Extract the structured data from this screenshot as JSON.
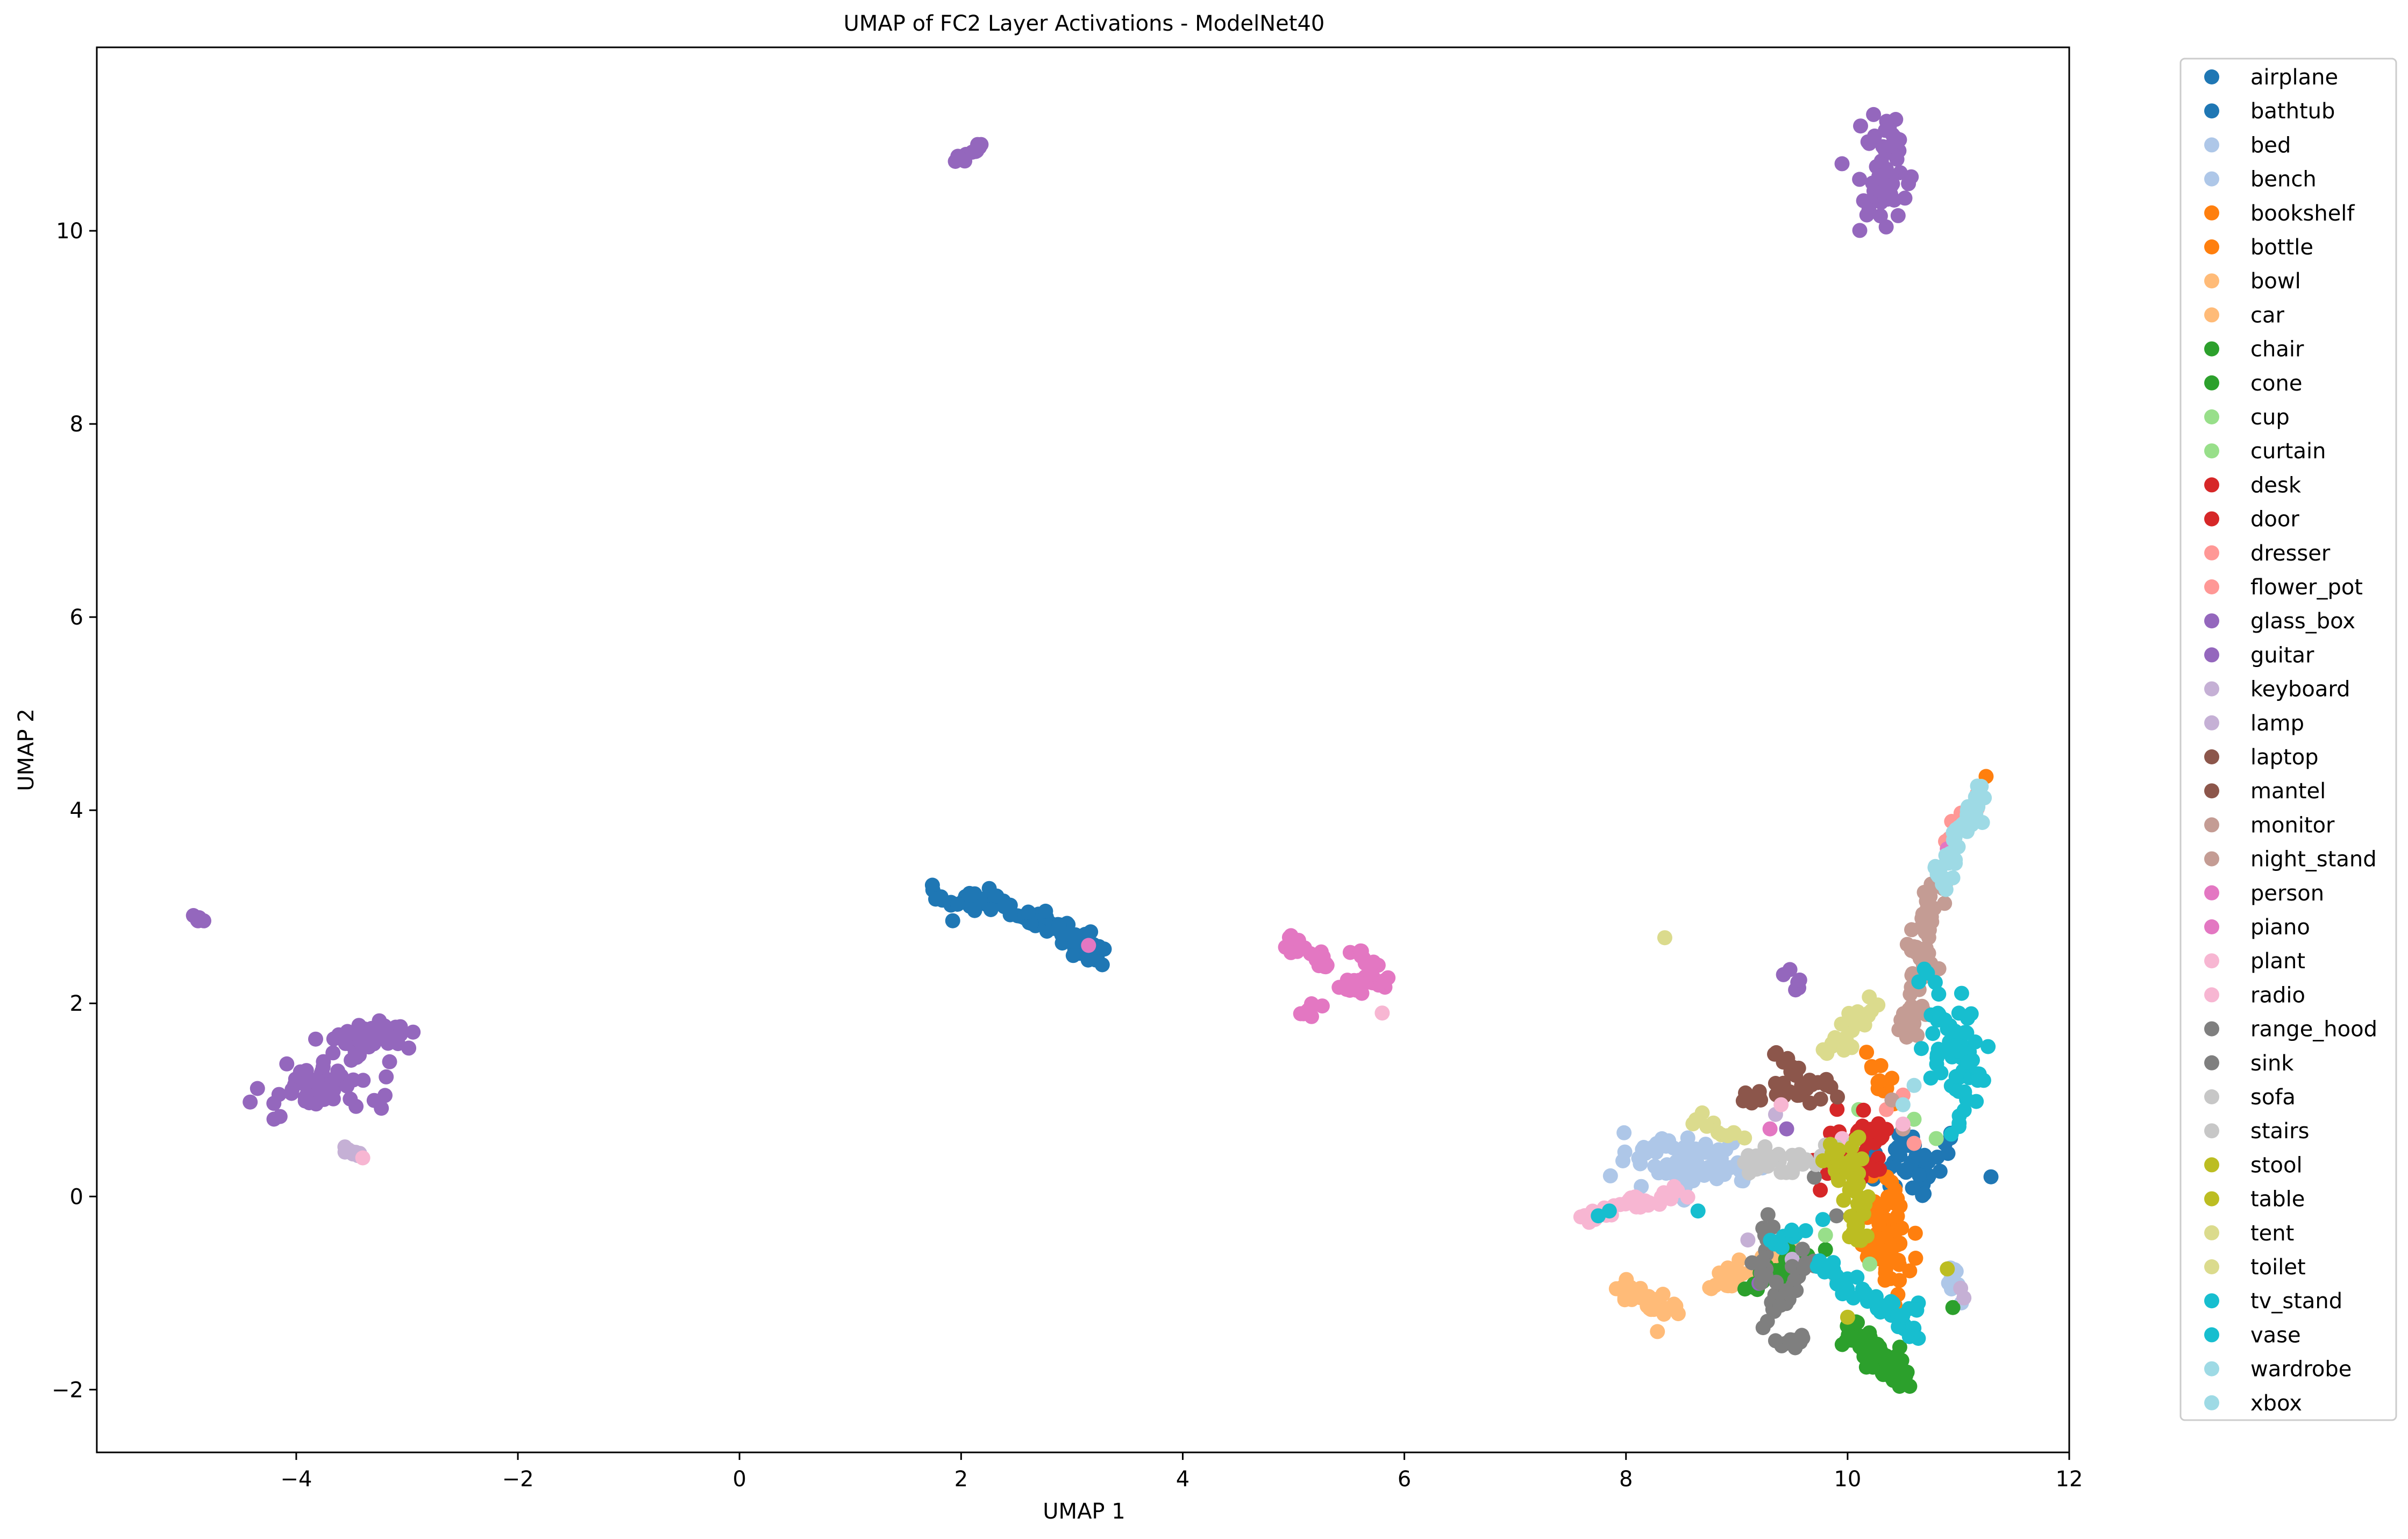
{
  "chart_data": {
    "type": "scatter",
    "title": "UMAP of FC2 Layer Activations - ModelNet40",
    "xlabel": "UMAP 1",
    "ylabel": "UMAP 2",
    "xlim": [
      -5.8,
      12.0
    ],
    "ylim": [
      -2.65,
      11.9
    ],
    "xticks": [
      -4,
      -2,
      0,
      2,
      4,
      6,
      8,
      10,
      12
    ],
    "xtick_labels": [
      "−4",
      "−2",
      "0",
      "2",
      "4",
      "6",
      "8",
      "10",
      "12"
    ],
    "yticks": [
      -2,
      0,
      2,
      4,
      6,
      8,
      10
    ],
    "ytick_labels": [
      "−2",
      "0",
      "2",
      "4",
      "6",
      "8",
      "10"
    ],
    "grid": false,
    "legend_position": "outside-right",
    "series": [
      {
        "name": "airplane",
        "color": "#1f77b4",
        "clusters": [
          {
            "cx": 10.6,
            "cy": 0.35,
            "sx": 0.25,
            "sy": 0.2,
            "n": 40
          }
        ]
      },
      {
        "name": "bathtub",
        "color": "#1f77b4",
        "clusters": [
          {
            "line": [
              [
                1.7,
                3.15
              ],
              [
                2.4,
                3.0
              ],
              [
                3.05,
                2.7
              ],
              [
                3.2,
                2.5
              ]
            ],
            "spread": 0.06,
            "n": 95
          }
        ]
      },
      {
        "name": "bed",
        "color": "#aec7e8",
        "clusters": [
          {
            "cx": 8.6,
            "cy": 0.35,
            "sx": 0.3,
            "sy": 0.15,
            "n": 60
          },
          {
            "line": [
              [
                8.1,
                0.45
              ],
              [
                9.1,
                0.2
              ]
            ],
            "spread": 0.08,
            "n": 30
          }
        ]
      },
      {
        "name": "bench",
        "color": "#aec7e8",
        "clusters": [
          {
            "line": [
              [
                10.9,
                -0.7
              ],
              [
                11.1,
                -1.2
              ]
            ],
            "spread": 0.03,
            "n": 10
          }
        ]
      },
      {
        "name": "bookshelf",
        "color": "#ff7f0e",
        "clusters": [
          {
            "cx": 10.35,
            "cy": -0.4,
            "sx": 0.1,
            "sy": 0.25,
            "n": 70
          },
          {
            "line": [
              [
                10.2,
                1.4
              ],
              [
                10.35,
                1.0
              ]
            ],
            "spread": 0.05,
            "n": 12
          }
        ]
      },
      {
        "name": "bottle",
        "color": "#ff7f0e",
        "clusters": [
          {
            "points": [
              [
                11.25,
                4.35
              ]
            ]
          }
        ]
      },
      {
        "name": "bowl",
        "color": "#ffbb78",
        "clusters": [
          {
            "line": [
              [
                7.95,
                -0.95
              ],
              [
                8.4,
                -1.2
              ]
            ],
            "spread": 0.06,
            "n": 40
          }
        ]
      },
      {
        "name": "car",
        "color": "#ffbb78",
        "clusters": [
          {
            "line": [
              [
                8.7,
                -0.95
              ],
              [
                9.6,
                -0.6
              ]
            ],
            "spread": 0.06,
            "n": 50
          }
        ]
      },
      {
        "name": "chair",
        "color": "#2ca02c",
        "clusters": [
          {
            "line": [
              [
                10.0,
                -1.35
              ],
              [
                10.5,
                -1.9
              ]
            ],
            "spread": 0.07,
            "n": 90
          }
        ]
      },
      {
        "name": "cone",
        "color": "#2ca02c",
        "clusters": [
          {
            "line": [
              [
                9.0,
                -1.0
              ],
              [
                9.6,
                -0.6
              ]
            ],
            "spread": 0.07,
            "n": 20
          },
          {
            "points": [
              [
                10.95,
                -1.15
              ],
              [
                9.8,
                -0.55
              ],
              [
                10.1,
                -0.2
              ]
            ]
          }
        ]
      },
      {
        "name": "cup",
        "color": "#98df8a",
        "clusters": [
          {
            "points": [
              [
                10.1,
                0.9
              ],
              [
                9.8,
                -0.4
              ],
              [
                10.8,
                0.6
              ]
            ]
          }
        ]
      },
      {
        "name": "curtain",
        "color": "#98df8a",
        "clusters": [
          {
            "points": [
              [
                10.6,
                0.8
              ],
              [
                10.2,
                -0.7
              ]
            ]
          }
        ]
      },
      {
        "name": "desk",
        "color": "#d62728",
        "clusters": [
          {
            "cx": 10.0,
            "cy": 0.45,
            "sx": 0.15,
            "sy": 0.15,
            "n": 35
          }
        ]
      },
      {
        "name": "door",
        "color": "#d62728",
        "clusters": [
          {
            "cx": 10.2,
            "cy": 0.65,
            "sx": 0.1,
            "sy": 0.15,
            "n": 15
          }
        ]
      },
      {
        "name": "dresser",
        "color": "#ff9896",
        "clusters": [
          {
            "line": [
              [
                10.85,
                3.6
              ],
              [
                11.2,
                4.2
              ]
            ],
            "spread": 0.04,
            "n": 8
          }
        ]
      },
      {
        "name": "flower_pot",
        "color": "#ff9896",
        "clusters": [
          {
            "points": [
              [
                10.6,
                0.55
              ],
              [
                10.35,
                0.9
              ],
              [
                10.5,
                1.05
              ]
            ]
          }
        ]
      },
      {
        "name": "glass_box",
        "color": "#9467bd",
        "clusters": [
          {
            "line": [
              [
                1.98,
                10.75
              ],
              [
                2.18,
                10.88
              ]
            ],
            "spread": 0.02,
            "n": 15
          },
          {
            "line": [
              [
                10.3,
                11.2
              ],
              [
                10.3,
                10.1
              ]
            ],
            "spread": 0.12,
            "n": 55
          },
          {
            "line": [
              [
                -4.95,
                2.9
              ],
              [
                -4.85,
                2.83
              ]
            ],
            "spread": 0.02,
            "n": 5
          }
        ]
      },
      {
        "name": "guitar",
        "color": "#9467bd",
        "clusters": [
          {
            "cx": -3.8,
            "cy": 1.15,
            "sx": 0.25,
            "sy": 0.15,
            "n": 60
          },
          {
            "cx": -3.3,
            "cy": 1.65,
            "sx": 0.2,
            "sy": 0.1,
            "n": 45
          },
          {
            "line": [
              [
                9.45,
                2.3
              ],
              [
                9.55,
                2.15
              ]
            ],
            "spread": 0.03,
            "n": 6
          },
          {
            "points": [
              [
                9.2,
                -0.9
              ],
              [
                9.45,
                0.7
              ]
            ]
          }
        ]
      },
      {
        "name": "keyboard",
        "color": "#c5b0d5",
        "clusters": [
          {
            "line": [
              [
                -3.6,
                0.55
              ],
              [
                -3.4,
                0.42
              ]
            ],
            "spread": 0.02,
            "n": 10
          },
          {
            "points": [
              [
                9.1,
                -0.45
              ],
              [
                9.35,
                0.85
              ]
            ]
          }
        ]
      },
      {
        "name": "lamp",
        "color": "#c5b0d5",
        "clusters": [
          {
            "points": [
              [
                11.02,
                -0.95
              ],
              [
                11.05,
                -1.05
              ],
              [
                9.5,
                -0.65
              ]
            ]
          }
        ]
      },
      {
        "name": "laptop",
        "color": "#8c564b",
        "clusters": [
          {
            "line": [
              [
                9.0,
                1.0
              ],
              [
                9.7,
                1.1
              ]
            ],
            "spread": 0.05,
            "n": 18
          },
          {
            "line": [
              [
                9.4,
                1.55
              ],
              [
                9.65,
                1.1
              ]
            ],
            "spread": 0.05,
            "n": 10
          }
        ]
      },
      {
        "name": "mantel",
        "color": "#8c564b",
        "clusters": [
          {
            "cx": 9.65,
            "cy": 1.15,
            "sx": 0.15,
            "sy": 0.08,
            "n": 15
          }
        ]
      },
      {
        "name": "monitor",
        "color": "#c49c94",
        "clusters": [
          {
            "line": [
              [
                10.85,
                3.3
              ],
              [
                10.55,
                1.6
              ]
            ],
            "spread": 0.06,
            "n": 45
          }
        ]
      },
      {
        "name": "night_stand",
        "color": "#c49c94",
        "clusters": [
          {
            "line": [
              [
                10.65,
                2.5
              ],
              [
                10.75,
                3.2
              ]
            ],
            "spread": 0.05,
            "n": 20
          },
          {
            "points": [
              [
                10.4,
                1.0
              ],
              [
                10.5,
                0.7
              ]
            ]
          }
        ]
      },
      {
        "name": "person",
        "color": "#e377c2",
        "clusters": [
          {
            "line": [
              [
                4.95,
                2.65
              ],
              [
                5.3,
                2.4
              ]
            ],
            "spread": 0.05,
            "n": 25
          },
          {
            "line": [
              [
                5.4,
                2.2
              ],
              [
                5.85,
                2.25
              ]
            ],
            "spread": 0.05,
            "n": 25
          }
        ]
      },
      {
        "name": "piano",
        "color": "#e377c2",
        "clusters": [
          {
            "line": [
              [
                5.05,
                1.85
              ],
              [
                5.3,
                2.05
              ]
            ],
            "spread": 0.04,
            "n": 10
          },
          {
            "line": [
              [
                5.55,
                2.55
              ],
              [
                5.8,
                2.3
              ]
            ],
            "spread": 0.04,
            "n": 12
          },
          {
            "points": [
              [
                3.15,
                2.6
              ],
              [
                10.9,
                3.6
              ],
              [
                9.3,
                0.7
              ]
            ]
          }
        ]
      },
      {
        "name": "plant",
        "color": "#f7b6d2",
        "clusters": [
          {
            "line": [
              [
                7.6,
                -0.25
              ],
              [
                8.5,
                0.05
              ]
            ],
            "spread": 0.05,
            "n": 35
          },
          {
            "points": [
              [
                -3.4,
                0.4
              ],
              [
                5.8,
                1.9
              ]
            ]
          }
        ]
      },
      {
        "name": "radio",
        "color": "#f7b6d2",
        "clusters": [
          {
            "points": [
              [
                9.4,
                0.95
              ],
              [
                9.95,
                0.6
              ],
              [
                10.5,
                0.75
              ]
            ]
          }
        ]
      },
      {
        "name": "range_hood",
        "color": "#7f7f7f",
        "clusters": [
          {
            "line": [
              [
                9.2,
                -1.4
              ],
              [
                9.65,
                -0.65
              ]
            ],
            "spread": 0.06,
            "n": 30
          },
          {
            "line": [
              [
                9.4,
                -1.55
              ],
              [
                9.6,
                -1.45
              ]
            ],
            "spread": 0.04,
            "n": 10
          }
        ]
      },
      {
        "name": "sink",
        "color": "#7f7f7f",
        "clusters": [
          {
            "line": [
              [
                9.2,
                -0.9
              ],
              [
                9.3,
                -0.2
              ]
            ],
            "spread": 0.04,
            "n": 15
          },
          {
            "points": [
              [
                9.9,
                -0.2
              ],
              [
                9.7,
                0.2
              ]
            ]
          }
        ]
      },
      {
        "name": "sofa",
        "color": "#c7c7c7",
        "clusters": [
          {
            "line": [
              [
                9.1,
                0.35
              ],
              [
                9.9,
                0.4
              ]
            ],
            "spread": 0.07,
            "n": 35
          }
        ]
      },
      {
        "name": "stairs",
        "color": "#c7c7c7",
        "clusters": [
          {
            "points": [
              [
                9.9,
                -0.85
              ],
              [
                10.05,
                0.55
              ],
              [
                9.4,
                0.25
              ]
            ]
          }
        ]
      },
      {
        "name": "stool",
        "color": "#bcbd22",
        "clusters": [
          {
            "line": [
              [
                10.05,
                0.6
              ],
              [
                10.1,
                -0.5
              ]
            ],
            "spread": 0.05,
            "n": 30
          }
        ]
      },
      {
        "name": "table",
        "color": "#bcbd22",
        "clusters": [
          {
            "line": [
              [
                9.8,
                0.5
              ],
              [
                10.1,
                0.1
              ]
            ],
            "spread": 0.06,
            "n": 15
          },
          {
            "points": [
              [
                10.9,
                -0.75
              ],
              [
                10.0,
                -1.25
              ]
            ]
          }
        ]
      },
      {
        "name": "tent",
        "color": "#dbdb8d",
        "clusters": [
          {
            "points": [
              [
                8.35,
                2.68
              ]
            ]
          }
        ]
      },
      {
        "name": "toilet",
        "color": "#dbdb8d",
        "clusters": [
          {
            "line": [
              [
                9.75,
                1.45
              ],
              [
                10.2,
                1.95
              ]
            ],
            "spread": 0.06,
            "n": 35
          },
          {
            "line": [
              [
                8.6,
                0.85
              ],
              [
                9.0,
                0.6
              ]
            ],
            "spread": 0.04,
            "n": 12
          }
        ]
      },
      {
        "name": "tv_stand",
        "color": "#17becf",
        "clusters": [
          {
            "cx": 11.0,
            "cy": 1.35,
            "sx": 0.15,
            "sy": 0.3,
            "n": 55
          },
          {
            "line": [
              [
                9.7,
                -0.65
              ],
              [
                10.7,
                -1.4
              ]
            ],
            "spread": 0.06,
            "n": 45
          },
          {
            "points": [
              [
                7.85,
                -0.15
              ],
              [
                7.75,
                -0.2
              ],
              [
                8.65,
                -0.15
              ]
            ]
          }
        ]
      },
      {
        "name": "vase",
        "color": "#17becf",
        "clusters": [
          {
            "line": [
              [
                10.7,
                2.35
              ],
              [
                10.9,
                1.8
              ]
            ],
            "spread": 0.05,
            "n": 12
          },
          {
            "line": [
              [
                9.3,
                -0.5
              ],
              [
                9.8,
                -0.25
              ]
            ],
            "spread": 0.04,
            "n": 10
          }
        ]
      },
      {
        "name": "wardrobe",
        "color": "#9edae5",
        "clusters": [
          {
            "line": [
              [
                10.8,
                3.2
              ],
              [
                11.25,
                4.3
              ]
            ],
            "spread": 0.05,
            "n": 40
          }
        ]
      },
      {
        "name": "xbox",
        "color": "#9edae5",
        "clusters": [
          {
            "points": [
              [
                10.5,
                0.95
              ],
              [
                10.6,
                1.15
              ],
              [
                10.95,
                3.3
              ]
            ]
          }
        ]
      }
    ]
  }
}
